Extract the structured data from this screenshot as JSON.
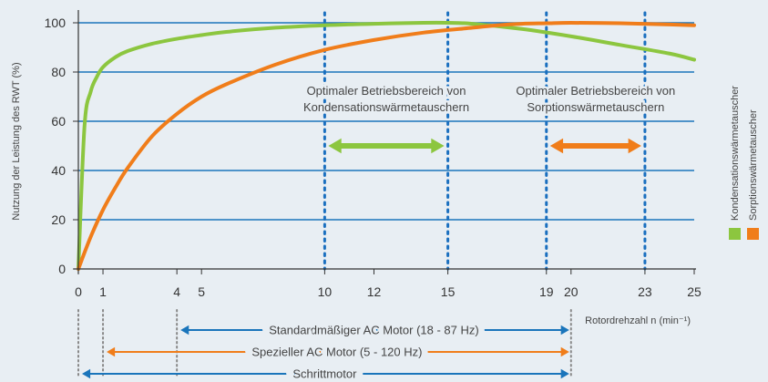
{
  "chart_data": {
    "type": "line",
    "title": "",
    "ylabel": "Nutzung der Leistung des RWT (%)",
    "xlabel": "Rotordrehzahl n (min⁻¹)",
    "ylim": [
      0,
      100
    ],
    "xlim": [
      0,
      25
    ],
    "grid": true,
    "x_ticks": [
      "0",
      "1",
      "4",
      "5",
      "10",
      "12",
      "15",
      "19",
      "20",
      "23",
      "25"
    ],
    "y_ticks": [
      "0",
      "20",
      "40",
      "60",
      "80",
      "100"
    ],
    "legend_position": "right",
    "series": [
      {
        "name": "Kondensationswärmetauscher",
        "color": "#8cc63f",
        "x": [
          0,
          0.25,
          0.5,
          0.75,
          1,
          1.5,
          2,
          3,
          4,
          5,
          6,
          8,
          10,
          12,
          14,
          15,
          16,
          18,
          20,
          22,
          24,
          25
        ],
        "y": [
          0,
          58,
          72,
          78,
          82,
          86,
          88.5,
          91.5,
          93.5,
          95,
          96.3,
          98,
          99,
          99.6,
          100,
          100,
          99.6,
          97.5,
          94.5,
          91,
          87.5,
          85
        ]
      },
      {
        "name": "Sorptionswärmetauscher",
        "color": "#f07d1a",
        "x": [
          0,
          0.5,
          1,
          1.5,
          2,
          3,
          4,
          5,
          6,
          8,
          10,
          12,
          14,
          16,
          17,
          18,
          19,
          20,
          22,
          24,
          25
        ],
        "y": [
          0,
          13,
          24,
          33,
          41,
          54,
          63,
          70,
          75,
          83,
          89,
          93,
          96,
          98,
          99,
          99.6,
          99.8,
          100,
          99.8,
          99.3,
          99
        ]
      }
    ],
    "vlines": [
      10,
      15,
      19,
      23
    ],
    "annotations": [
      {
        "lines": [
          "Optimaler Betriebsbereich von",
          "Kondensationswärmetauschern"
        ],
        "x_from": 10,
        "x_to": 15,
        "arrow_y": 50,
        "color": "#8cc63f"
      },
      {
        "lines": [
          "Optimaler Betriebsbereich von",
          "Sorptionswärmetauschern"
        ],
        "x_from": 19,
        "x_to": 23,
        "arrow_y": 50,
        "color": "#f07d1a"
      }
    ],
    "motor_ranges": [
      {
        "label": "Standardmäßiger AC Motor (18 - 87 Hz)",
        "x_from": 4,
        "x_to": 20,
        "color": "#1a75bb"
      },
      {
        "label": "Spezieller AC Motor (5 - 120 Hz)",
        "x_from": 1,
        "x_to": 20,
        "color": "#f07d1a"
      },
      {
        "label": "Schrittmotor",
        "x_from": 0,
        "x_to": 20,
        "color": "#1a75bb"
      }
    ],
    "motor_guides": [
      0,
      1,
      4,
      20
    ],
    "colors": {
      "grid": "#1a75bb",
      "axis": "#333333",
      "vline": "#1a6fbf"
    }
  }
}
